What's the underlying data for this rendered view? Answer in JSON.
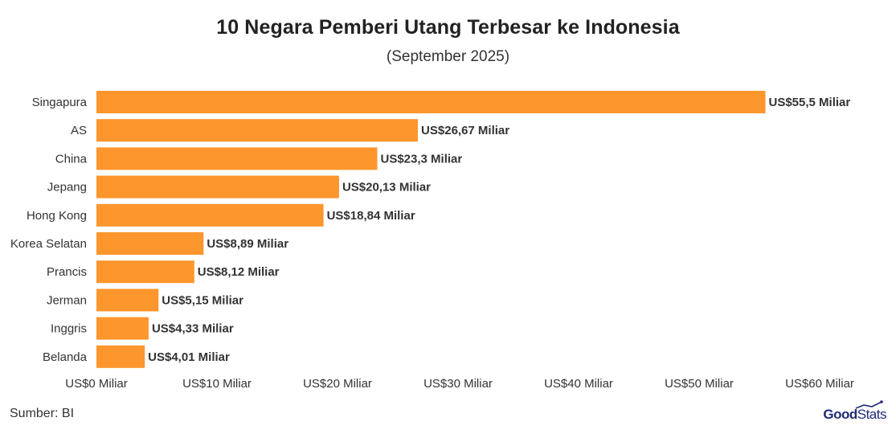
{
  "chart_data": {
    "type": "bar",
    "orientation": "horizontal",
    "title": "10 Negara Pemberi Utang Terbesar ke Indonesia",
    "subtitle": "(September 2025)",
    "categories": [
      "Singapura",
      "AS",
      "China",
      "Jepang",
      "Hong Kong",
      "Korea Selatan",
      "Prancis",
      "Jerman",
      "Inggris",
      "Belanda"
    ],
    "values": [
      55.5,
      26.67,
      23.3,
      20.13,
      18.84,
      8.89,
      8.12,
      5.15,
      4.33,
      4.01
    ],
    "value_labels": [
      "US$55,5 Miliar",
      "US$26,67 Miliar",
      "US$23,3 Miliar",
      "US$20,13 Miliar",
      "US$18,84 Miliar",
      "US$8,89 Miliar",
      "US$8,12 Miliar",
      "US$5,15 Miliar",
      "US$4,33 Miliar",
      "US$4,01 Miliar"
    ],
    "xlim": [
      0,
      60
    ],
    "x_ticks": [
      0,
      10,
      20,
      30,
      40,
      50,
      60
    ],
    "x_tick_labels": [
      "US$0 Miliar",
      "US$10 Miliar",
      "US$20 Miliar",
      "US$30 Miliar",
      "US$40 Miliar",
      "US$50 Miliar",
      "US$60 Miliar"
    ],
    "bar_color": "#fd962d",
    "grid": false
  },
  "footer": {
    "source": "Sumber: BI",
    "logo_good": "Good",
    "logo_stats": "Stats"
  }
}
